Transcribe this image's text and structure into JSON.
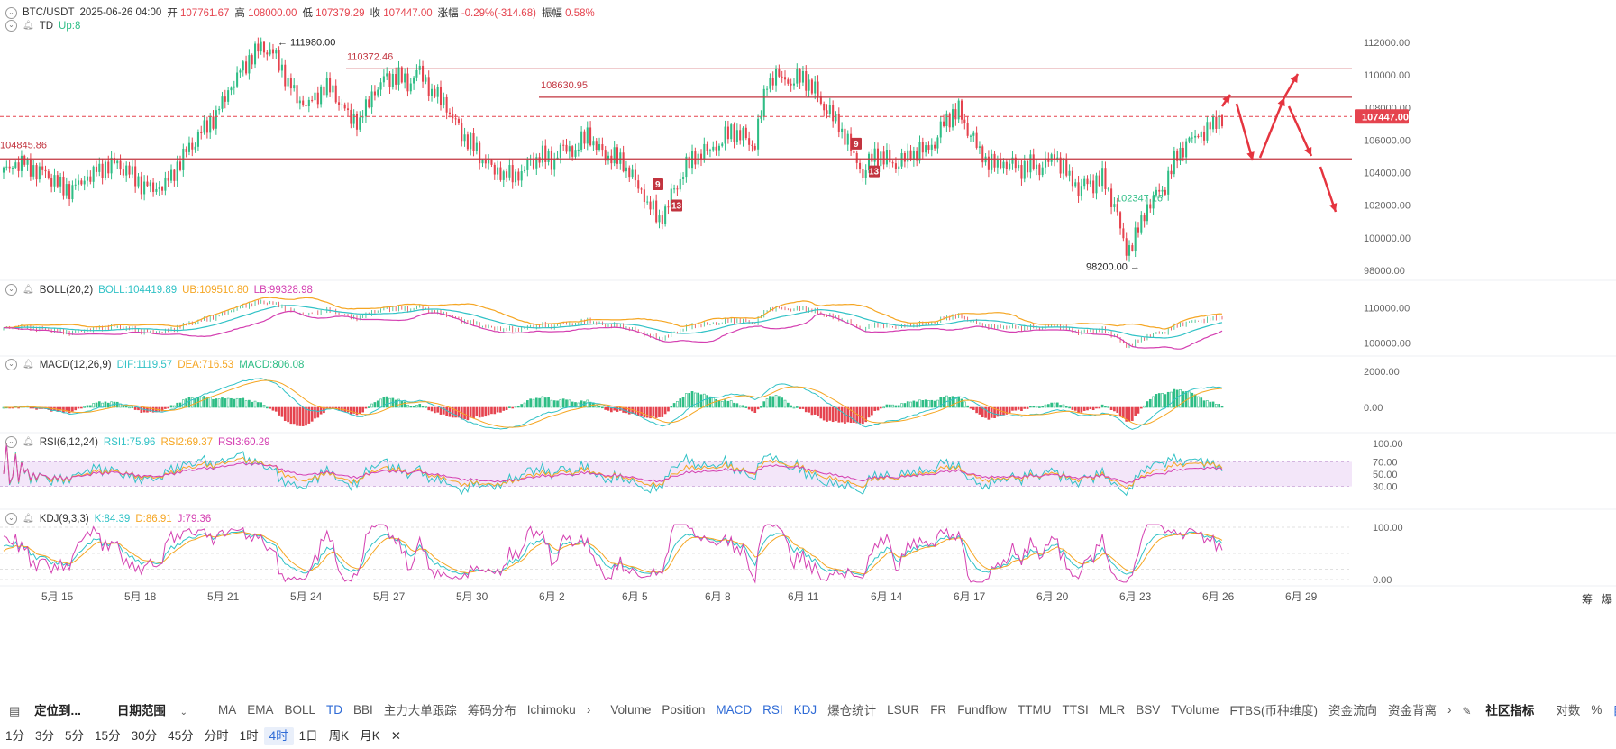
{
  "header": {
    "symbol": "BTC/USDT",
    "datetime": "2025-06-26 04:00",
    "open_label": "开",
    "open": "107761.67",
    "high_label": "高",
    "high": "108000.00",
    "low_label": "低",
    "low": "107379.29",
    "close_label": "收",
    "close": "107447.00",
    "change_label": "涨幅",
    "change": "-0.29%(-314.68)",
    "amp_label": "振幅",
    "amp": "0.58%"
  },
  "td": {
    "name": "TD",
    "value": "Up:8"
  },
  "boll": {
    "name": "BOLL(20,2)",
    "mid": "BOLL:104419.89",
    "ub": "UB:109510.80",
    "lb": "LB:99328.98"
  },
  "macd": {
    "name": "MACD(12,26,9)",
    "dif": "DIF:1119.57",
    "dea": "DEA:716.53",
    "macd": "MACD:806.08"
  },
  "rsi": {
    "name": "RSI(6,12,24)",
    "r1": "RSI1:75.96",
    "r2": "RSI2:69.37",
    "r3": "RSI3:60.29"
  },
  "kdj": {
    "name": "KDJ(9,3,3)",
    "k": "K:84.39",
    "d": "D:86.91",
    "j": "J:79.36"
  },
  "colors": {
    "up": "#2ebd85",
    "down": "#e5434e",
    "line": "#c2343f",
    "blue": "#2f6bd6",
    "ub": "#f5a623",
    "lb": "#d43fb1",
    "mid": "#31c2c6"
  },
  "chart_data": {
    "type": "candlestick",
    "price_axis": {
      "ticks": [
        "112000.00",
        "110000.00",
        "108000.00",
        "106000.00",
        "104000.00",
        "102000.00",
        "100000.00",
        "98000.00"
      ]
    },
    "last_price": "107447.00",
    "annotations": {
      "high": "111980.00",
      "low": "98200.00",
      "level_top": "110372.46",
      "level_resistance": "108630.95",
      "level_support": "104845.86",
      "local_low": "102347.16",
      "td_nine": "9",
      "td_thirteen": "13"
    },
    "levels": [
      110372.46,
      108630.95,
      104845.86
    ],
    "close_path": [
      104000,
      104300,
      104600,
      104200,
      103800,
      103200,
      103000,
      103400,
      104100,
      104600,
      104400,
      103900,
      103200,
      102800,
      103500,
      104800,
      105700,
      106800,
      107600,
      108800,
      110200,
      111300,
      111700,
      111200,
      109600,
      108100,
      108300,
      109400,
      108700,
      107600,
      107200,
      108600,
      109700,
      110000,
      109400,
      110400,
      109000,
      108200,
      107000,
      106000,
      105000,
      104400,
      104000,
      103600,
      104400,
      105100,
      104600,
      105700,
      105400,
      106300,
      105300,
      105000,
      104500,
      103600,
      102300,
      100900,
      102500,
      104100,
      104900,
      105500,
      105800,
      106500,
      106200,
      105700,
      109500,
      110100,
      109600,
      109800,
      109000,
      107800,
      106800,
      105600,
      104000,
      105100,
      104800,
      104500,
      105000,
      105500,
      105900,
      107300,
      107800,
      106300,
      104800,
      104600,
      104700,
      104200,
      104500,
      104300,
      104900,
      104100,
      103100,
      103300,
      103700,
      102000,
      98900,
      100600,
      102400,
      102800,
      104800,
      105800,
      106100,
      106900,
      107500
    ],
    "boll_scale": {
      "ticks": [
        "110000.00",
        "100000.00"
      ]
    },
    "macd_scale": {
      "ticks": [
        "2000.00",
        "0.00"
      ]
    },
    "rsi_scale": {
      "ticks": [
        "100.00",
        "70.00",
        "50.00",
        "30.00"
      ]
    },
    "kdj_scale": {
      "ticks": [
        "100.00",
        "0.00"
      ]
    },
    "x_ticks": [
      "5月 15",
      "5月 18",
      "5月 21",
      "5月 24",
      "5月 27",
      "5月 30",
      "6月 2",
      "6月 5",
      "6月 8",
      "6月 11",
      "6月 14",
      "6月 17",
      "6月 20",
      "6月 23",
      "6月 26",
      "6月 29"
    ]
  },
  "axis_corner": {
    "a": "筹",
    "b": "爆"
  },
  "toolbar": {
    "goto": "定位到...",
    "range": "日期范围",
    "main_indicators": [
      "MA",
      "EMA",
      "BOLL",
      "TD",
      "BBI",
      "主力大单跟踪",
      "筹码分布",
      "Ichimoku"
    ],
    "sub_indicators": [
      "Volume",
      "Position",
      "MACD",
      "RSI",
      "KDJ",
      "爆仓统计",
      "LSUR",
      "FR",
      "Fundflow",
      "TTMU",
      "TTSI",
      "MLR",
      "BSV",
      "TVolume",
      "FTBS(币种维度)",
      "资金流向",
      "资金背离"
    ],
    "more": "›",
    "community": "社区指标",
    "log": "对数",
    "percent": "%",
    "auto": "自动"
  },
  "intervals": {
    "items": [
      "1分",
      "3分",
      "5分",
      "15分",
      "30分",
      "45分",
      "分时",
      "1时",
      "4时",
      "1日",
      "周K",
      "月K"
    ],
    "selected": "4时",
    "close": "✕"
  }
}
